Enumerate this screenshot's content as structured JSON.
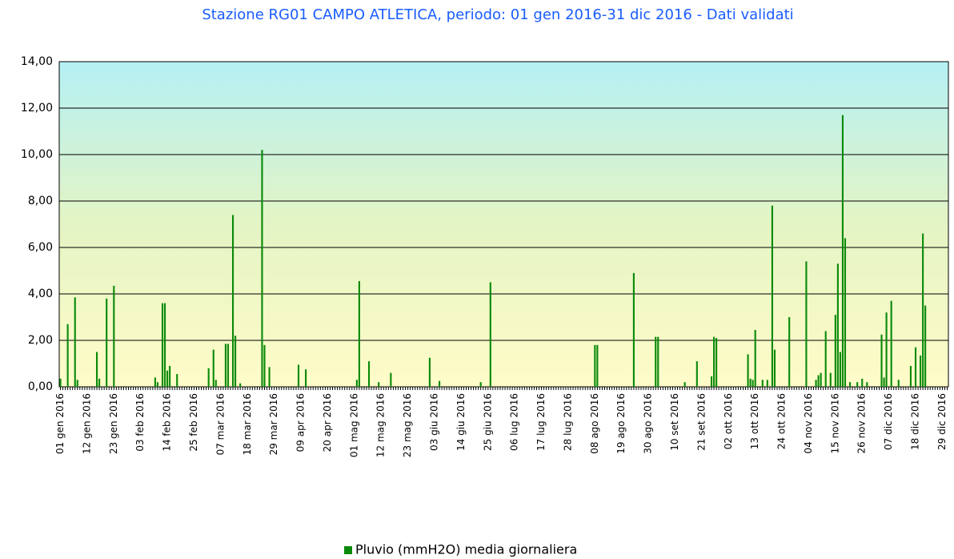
{
  "chart_data": {
    "type": "bar",
    "title": "Stazione RG01 CAMPO ATLETICA, periodo: 01 gen 2016-31 dic 2016 - Dati validati",
    "categories": [
      "01 gen 2016",
      null,
      null,
      null,
      null,
      null,
      null,
      null,
      null,
      null,
      null,
      "12 gen 2016",
      null,
      null,
      null,
      null,
      null,
      null,
      null,
      null,
      null,
      null,
      "23 gen 2016",
      null,
      null,
      null,
      null,
      null,
      null,
      null,
      null,
      null,
      null,
      "03 feb 2016",
      null,
      null,
      null,
      null,
      null,
      null,
      null,
      null,
      null,
      null,
      "14 feb 2016",
      null,
      null,
      null,
      null,
      null,
      null,
      null,
      null,
      null,
      null,
      "25 feb 2016",
      null,
      null,
      null,
      null,
      null,
      null,
      null,
      null,
      null,
      null,
      "07 mar 2016",
      null,
      null,
      null,
      null,
      null,
      null,
      null,
      null,
      null,
      null,
      "18 mar 2016",
      null,
      null,
      null,
      null,
      null,
      null,
      null,
      null,
      null,
      null,
      "29 mar 2016",
      null,
      null,
      null,
      null,
      null,
      null,
      null,
      null,
      null,
      null,
      "09 apr 2016",
      null,
      null,
      null,
      null,
      null,
      null,
      null,
      null,
      null,
      null,
      "20 apr 2016",
      null,
      null,
      null,
      null,
      null,
      null,
      null,
      null,
      null,
      null,
      "01 mag 2016",
      null,
      null,
      null,
      null,
      null,
      null,
      null,
      null,
      null,
      null,
      "12 mag 2016",
      null,
      null,
      null,
      null,
      null,
      null,
      null,
      null,
      null,
      null,
      "23 mag 2016",
      null,
      null,
      null,
      null,
      null,
      null,
      null,
      null,
      null,
      null,
      "03 giu 2016",
      null,
      null,
      null,
      null,
      null,
      null,
      null,
      null,
      null,
      null,
      "14 giu 2016",
      null,
      null,
      null,
      null,
      null,
      null,
      null,
      null,
      null,
      null,
      "25 giu 2016",
      null,
      null,
      null,
      null,
      null,
      null,
      null,
      null,
      null,
      null,
      "06 lug 2016",
      null,
      null,
      null,
      null,
      null,
      null,
      null,
      null,
      null,
      null,
      "17 lug 2016",
      null,
      null,
      null,
      null,
      null,
      null,
      null,
      null,
      null,
      null,
      "28 lug 2016",
      null,
      null,
      null,
      null,
      null,
      null,
      null,
      null,
      null,
      null,
      "08 ago 2016",
      null,
      null,
      null,
      null,
      null,
      null,
      null,
      null,
      null,
      null,
      "19 ago 2016",
      null,
      null,
      null,
      null,
      null,
      null,
      null,
      null,
      null,
      null,
      "30 ago 2016",
      null,
      null,
      null,
      null,
      null,
      null,
      null,
      null,
      null,
      null,
      "10 set 2016",
      null,
      null,
      null,
      null,
      null,
      null,
      null,
      null,
      null,
      null,
      "21 set 2016",
      null,
      null,
      null,
      null,
      null,
      null,
      null,
      null,
      null,
      null,
      "02 ott 2016",
      null,
      null,
      null,
      null,
      null,
      null,
      null,
      null,
      null,
      null,
      "13 ott 2016",
      null,
      null,
      null,
      null,
      null,
      null,
      null,
      null,
      null,
      null,
      "24 ott 2016",
      null,
      null,
      null,
      null,
      null,
      null,
      null,
      null,
      null,
      null,
      "04 nov 2016",
      null,
      null,
      null,
      null,
      null,
      null,
      null,
      null,
      null,
      null,
      "15 nov 2016",
      null,
      null,
      null,
      null,
      null,
      null,
      null,
      null,
      null,
      null,
      "26 nov 2016",
      null,
      null,
      null,
      null,
      null,
      null,
      null,
      null,
      null,
      null,
      "07 dic 2016",
      null,
      null,
      null,
      null,
      null,
      null,
      null,
      null,
      null,
      null,
      "18 dic 2016",
      null,
      null,
      null,
      null,
      null,
      null,
      null,
      null,
      null,
      null,
      "29 dic 2016",
      null,
      null
    ],
    "series": [
      {
        "name": "Pluvio (mmH2O) media giornaliera",
        "color": "#0a8a0a",
        "values": [
          0.35,
          0,
          0,
          2.7,
          0,
          0,
          3.85,
          0.3,
          0,
          0,
          0,
          0,
          0,
          0,
          0,
          1.5,
          0.35,
          0,
          0,
          3.8,
          0,
          0,
          4.35,
          0,
          0,
          0,
          0,
          0,
          0,
          0,
          0,
          0,
          0,
          0,
          0,
          0,
          0,
          0,
          0,
          0.4,
          0.2,
          0,
          3.6,
          3.6,
          0.7,
          0.9,
          0,
          0,
          0.55,
          0,
          0,
          0,
          0,
          0,
          0,
          0,
          0,
          0,
          0,
          0,
          0,
          0.8,
          0,
          1.6,
          0.3,
          0,
          0,
          0,
          1.85,
          1.85,
          0,
          7.4,
          2.2,
          0,
          0.15,
          0,
          0,
          0,
          0,
          0,
          0,
          0,
          0,
          10.2,
          1.8,
          0,
          0.85,
          0,
          0,
          0,
          0,
          0,
          0,
          0,
          0,
          0,
          0,
          0,
          0.95,
          0,
          0,
          0.75,
          0,
          0,
          0,
          0,
          0,
          0,
          0,
          0,
          0,
          0,
          0,
          0,
          0,
          0,
          0,
          0,
          0,
          0,
          0,
          0,
          0.3,
          4.55,
          0,
          0,
          0,
          1.1,
          0,
          0,
          0,
          0.2,
          0,
          0,
          0,
          0,
          0.6,
          0,
          0,
          0,
          0,
          0,
          0,
          0,
          0,
          0,
          0,
          0,
          0,
          0,
          0,
          0,
          1.25,
          0,
          0,
          0,
          0.25,
          0,
          0,
          0,
          0,
          0,
          0,
          0,
          0,
          0,
          0,
          0,
          0,
          0,
          0,
          0,
          0,
          0.2,
          0,
          0,
          0,
          4.5,
          0,
          0,
          0,
          0,
          0,
          0,
          0,
          0,
          0,
          0,
          0,
          0,
          0,
          0,
          0,
          0,
          0,
          0,
          0,
          0,
          0,
          0,
          0,
          0,
          0,
          0,
          0,
          0,
          0,
          0,
          0,
          0,
          0,
          0,
          0,
          0,
          0,
          0,
          0,
          0,
          0,
          0,
          1.8,
          1.8,
          0,
          0,
          0,
          0,
          0,
          0,
          0,
          0,
          0,
          0,
          0,
          0,
          0,
          0,
          4.9,
          0,
          0,
          0,
          0,
          0,
          0,
          0,
          0,
          2.15,
          2.15,
          0,
          0,
          0,
          0,
          0,
          0,
          0,
          0,
          0,
          0,
          0.2,
          0,
          0,
          0,
          0,
          1.1,
          0,
          0,
          0,
          0,
          0,
          0.45,
          2.15,
          2.1,
          0,
          0,
          0,
          0,
          0,
          0,
          0,
          0,
          0,
          0,
          0,
          0,
          1.4,
          0.35,
          0.3,
          2.45,
          0,
          0,
          0.3,
          0,
          0.3,
          0,
          7.8,
          1.6,
          0,
          0,
          0,
          0,
          0,
          3,
          0,
          0,
          0,
          0,
          0,
          0,
          5.4,
          0,
          0,
          0,
          0.3,
          0.5,
          0.6,
          0,
          2.4,
          0,
          0.6,
          0,
          3.1,
          5.3,
          1.5,
          11.7,
          6.4,
          0,
          0.2,
          0,
          0,
          0.2,
          0,
          0.35,
          0,
          0.2,
          0,
          0,
          0,
          0,
          0,
          2.25,
          0.4,
          3.2,
          0,
          3.7,
          0,
          0,
          0.3,
          0,
          0,
          0,
          0,
          0.9,
          0,
          1.7,
          0,
          1.35,
          6.6,
          3.5,
          0,
          0,
          0,
          0,
          0,
          0,
          0,
          0,
          0
        ]
      }
    ],
    "ylim": [
      0,
      14
    ],
    "yticks": [
      {
        "value": 0,
        "label": "0,00"
      },
      {
        "value": 2,
        "label": "2,00"
      },
      {
        "value": 4,
        "label": "4,00"
      },
      {
        "value": 6,
        "label": "6,00"
      },
      {
        "value": 8,
        "label": "8,00"
      },
      {
        "value": 10,
        "label": "10,00"
      },
      {
        "value": 12,
        "label": "12,00"
      },
      {
        "value": 14,
        "label": "14,00"
      }
    ],
    "grid": true,
    "legend": "bottom"
  }
}
